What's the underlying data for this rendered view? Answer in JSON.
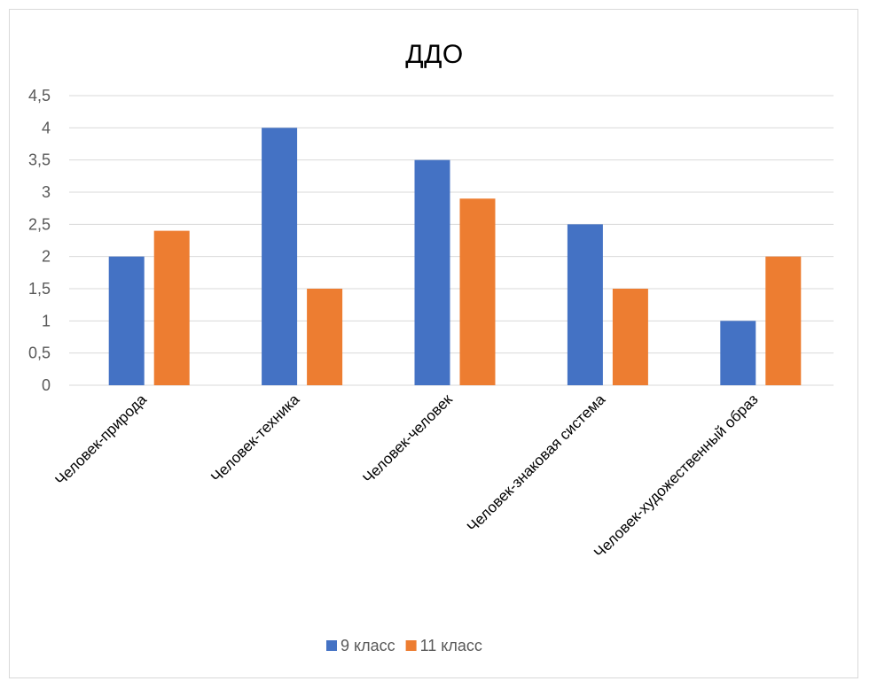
{
  "chart_data": {
    "type": "bar",
    "title": "ДДО",
    "categories": [
      "Человек-природа",
      "Человек-техника",
      "Человек-человек",
      "Человек-знаковая система",
      "Человек-художественный образ"
    ],
    "series": [
      {
        "name": "9 класс",
        "color": "#4472C4",
        "values": [
          2,
          4,
          3.5,
          2.5,
          1
        ]
      },
      {
        "name": "11 класс",
        "color": "#ED7D31",
        "values": [
          2.4,
          1.5,
          2.9,
          1.5,
          2
        ]
      }
    ],
    "ylim": [
      0,
      4.5
    ],
    "yticks": [
      "0",
      "0,5",
      "1",
      "1,5",
      "2",
      "2,5",
      "3",
      "3,5",
      "4",
      "4,5"
    ],
    "grid": true,
    "legend": "bottom"
  }
}
